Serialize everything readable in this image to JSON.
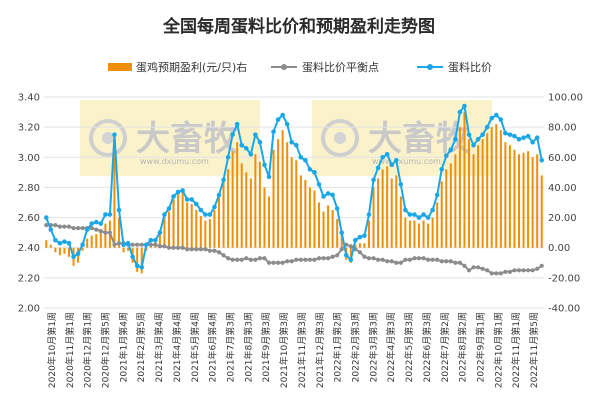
{
  "chart_data": {
    "type": "bar+line",
    "title": "全国每周蛋料比价和预期盈利走势图",
    "legend": [
      {
        "key": "profit",
        "label": "蛋鸡预期盈利(元/只)右",
        "color": "#F0900A",
        "shape": "bar"
      },
      {
        "key": "breakeven",
        "label": "蛋料比价平衡点",
        "color": "#8C8C8C",
        "shape": "line"
      },
      {
        "key": "ratio",
        "label": "蛋料比价",
        "color": "#1AA7E8",
        "shape": "line"
      }
    ],
    "left_axis": {
      "min": 2.0,
      "max": 3.4,
      "ticks": [
        "2.00",
        "2.20",
        "2.40",
        "2.60",
        "2.80",
        "3.00",
        "3.20",
        "3.40"
      ]
    },
    "right_axis": {
      "min": -40,
      "max": 100,
      "ticks": [
        "-40.00",
        "-20.00",
        "0.00",
        "20.00",
        "40.00",
        "60.00",
        "80.00",
        "100.00"
      ]
    },
    "x_labels": [
      "2020年10月第1周",
      "2020年11月第1周",
      "2020年12月第1周",
      "2020年12月第5周",
      "2021年1月第4周",
      "2021年2月第5周",
      "2021年3月第4周",
      "2021年4月第4周",
      "2021年5月第4周",
      "2021年6月第4周",
      "2021年7月第3周",
      "2021年8月第3周",
      "2021年9月第3周",
      "2021年10月第3周",
      "2021年11月第3周",
      "2021年12月第3周",
      "2022年1月第2周",
      "2022年2月第3周",
      "2022年3月第3周",
      "2022年4月第3周",
      "2022年5月第3周",
      "2022年6月第3周",
      "2022年7月第2周",
      "2022年8月第2周",
      "2022年9月第1周",
      "2022年10月第1周",
      "2022年11月第1周",
      "2022年11月第5周"
    ],
    "ratio": [
      2.6,
      2.52,
      2.45,
      2.43,
      2.44,
      2.43,
      2.34,
      2.36,
      2.42,
      2.52,
      2.56,
      2.57,
      2.56,
      2.62,
      2.62,
      3.15,
      2.65,
      2.42,
      2.43,
      2.34,
      2.28,
      2.27,
      2.42,
      2.45,
      2.45,
      2.5,
      2.62,
      2.66,
      2.74,
      2.77,
      2.78,
      2.72,
      2.72,
      2.69,
      2.65,
      2.62,
      2.62,
      2.67,
      2.75,
      2.85,
      3.0,
      3.15,
      3.22,
      3.08,
      3.06,
      3.02,
      3.15,
      3.1,
      2.95,
      2.87,
      3.17,
      3.25,
      3.28,
      3.22,
      3.1,
      3.08,
      3.0,
      2.98,
      2.92,
      2.9,
      2.82,
      2.74,
      2.76,
      2.75,
      2.66,
      2.5,
      2.35,
      2.32,
      2.45,
      2.47,
      2.48,
      2.62,
      2.85,
      2.93,
      3.0,
      3.02,
      2.95,
      2.98,
      2.82,
      2.65,
      2.62,
      2.62,
      2.6,
      2.62,
      2.6,
      2.65,
      2.75,
      2.92,
      3.01,
      3.05,
      3.12,
      3.3,
      3.34,
      3.15,
      3.08,
      3.12,
      3.15,
      3.2,
      3.26,
      3.28,
      3.25,
      3.16,
      3.15,
      3.14,
      3.12,
      3.13,
      3.14,
      3.1,
      3.13,
      2.98
    ],
    "breakeven": [
      2.55,
      2.55,
      2.55,
      2.54,
      2.54,
      2.54,
      2.53,
      2.53,
      2.53,
      2.53,
      2.53,
      2.52,
      2.51,
      2.5,
      2.5,
      2.42,
      2.43,
      2.43,
      2.42,
      2.42,
      2.42,
      2.42,
      2.42,
      2.42,
      2.42,
      2.41,
      2.41,
      2.4,
      2.4,
      2.4,
      2.4,
      2.39,
      2.39,
      2.39,
      2.39,
      2.39,
      2.38,
      2.38,
      2.37,
      2.35,
      2.33,
      2.32,
      2.32,
      2.32,
      2.33,
      2.32,
      2.32,
      2.33,
      2.33,
      2.3,
      2.3,
      2.3,
      2.3,
      2.31,
      2.31,
      2.32,
      2.32,
      2.32,
      2.32,
      2.32,
      2.33,
      2.33,
      2.33,
      2.34,
      2.35,
      2.39,
      2.42,
      2.41,
      2.39,
      2.37,
      2.34,
      2.33,
      2.33,
      2.32,
      2.32,
      2.31,
      2.31,
      2.3,
      2.3,
      2.32,
      2.32,
      2.33,
      2.33,
      2.33,
      2.32,
      2.32,
      2.32,
      2.31,
      2.31,
      2.31,
      2.3,
      2.3,
      2.28,
      2.25,
      2.27,
      2.27,
      2.26,
      2.25,
      2.23,
      2.23,
      2.23,
      2.24,
      2.24,
      2.25,
      2.25,
      2.25,
      2.25,
      2.25,
      2.26,
      2.28
    ],
    "profit": [
      5,
      2,
      -3,
      -5,
      -4,
      -6,
      -12,
      -10,
      -2,
      6,
      8,
      9,
      10,
      16,
      18,
      62,
      20,
      -3,
      -2,
      -10,
      -16,
      -17,
      -2,
      2,
      4,
      12,
      20,
      24,
      32,
      36,
      37,
      30,
      29,
      25,
      21,
      18,
      19,
      25,
      35,
      45,
      52,
      64,
      70,
      56,
      50,
      46,
      62,
      57,
      40,
      34,
      65,
      72,
      78,
      70,
      60,
      58,
      48,
      45,
      40,
      38,
      30,
      24,
      28,
      25,
      19,
      10,
      -8,
      -10,
      2,
      3,
      3,
      18,
      40,
      46,
      52,
      54,
      46,
      48,
      34,
      20,
      18,
      18,
      16,
      18,
      16,
      20,
      30,
      44,
      52,
      56,
      62,
      80,
      90,
      72,
      62,
      68,
      72,
      76,
      80,
      82,
      78,
      70,
      68,
      65,
      62,
      63,
      64,
      60,
      62,
      48
    ]
  },
  "watermark": {
    "brand": "大畜牧",
    "url": "www.dxumu.com"
  }
}
